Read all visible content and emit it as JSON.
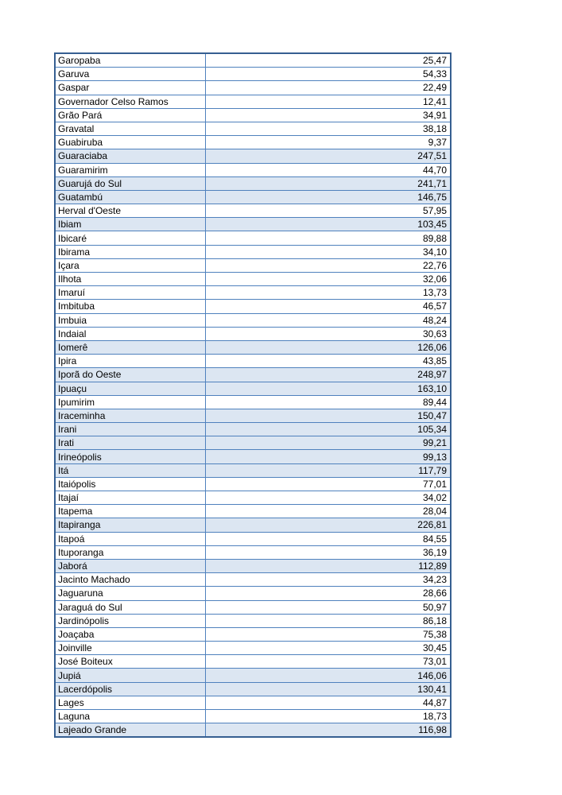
{
  "page": {
    "background_color": "#ffffff"
  },
  "table": {
    "outer_border_color": "#365f91",
    "grid_color": "#4f81bd",
    "highlight_color": "#dce6f2",
    "text_color": "#000000",
    "columns": [
      "municipality",
      "value"
    ],
    "rows": [
      {
        "name": "Garopaba",
        "value": "25,47",
        "highlighted": false
      },
      {
        "name": "Garuva",
        "value": "54,33",
        "highlighted": false
      },
      {
        "name": "Gaspar",
        "value": "22,49",
        "highlighted": false
      },
      {
        "name": "Governador Celso Ramos",
        "value": "12,41",
        "highlighted": false
      },
      {
        "name": "Grão Pará",
        "value": "34,91",
        "highlighted": false
      },
      {
        "name": "Gravatal",
        "value": "38,18",
        "highlighted": false
      },
      {
        "name": "Guabiruba",
        "value": "9,37",
        "highlighted": false
      },
      {
        "name": "Guaraciaba",
        "value": "247,51",
        "highlighted": true
      },
      {
        "name": "Guaramirim",
        "value": "44,70",
        "highlighted": false
      },
      {
        "name": "Guarujá do Sul",
        "value": "241,71",
        "highlighted": true
      },
      {
        "name": "Guatambú",
        "value": "146,75",
        "highlighted": true
      },
      {
        "name": "Herval d'Oeste",
        "value": "57,95",
        "highlighted": false
      },
      {
        "name": "Ibiam",
        "value": "103,45",
        "highlighted": true
      },
      {
        "name": "Ibicaré",
        "value": "89,88",
        "highlighted": false
      },
      {
        "name": "Ibirama",
        "value": "34,10",
        "highlighted": false
      },
      {
        "name": "Içara",
        "value": "22,76",
        "highlighted": false
      },
      {
        "name": "Ilhota",
        "value": "32,06",
        "highlighted": false
      },
      {
        "name": "Imaruí",
        "value": "13,73",
        "highlighted": false
      },
      {
        "name": "Imbituba",
        "value": "46,57",
        "highlighted": false
      },
      {
        "name": "Imbuia",
        "value": "48,24",
        "highlighted": false
      },
      {
        "name": "Indaial",
        "value": "30,63",
        "highlighted": false
      },
      {
        "name": "Iomerê",
        "value": "126,06",
        "highlighted": true
      },
      {
        "name": "Ipira",
        "value": "43,85",
        "highlighted": false
      },
      {
        "name": "Iporã do Oeste",
        "value": "248,97",
        "highlighted": true
      },
      {
        "name": "Ipuaçu",
        "value": "163,10",
        "highlighted": true
      },
      {
        "name": "Ipumirim",
        "value": "89,44",
        "highlighted": false
      },
      {
        "name": "Iraceminha",
        "value": "150,47",
        "highlighted": true
      },
      {
        "name": "Irani",
        "value": "105,34",
        "highlighted": true
      },
      {
        "name": "Irati",
        "value": "99,21",
        "highlighted": true
      },
      {
        "name": "Irineópolis",
        "value": "99,13",
        "highlighted": true
      },
      {
        "name": "Itá",
        "value": "117,79",
        "highlighted": true
      },
      {
        "name": "Itaiópolis",
        "value": "77,01",
        "highlighted": false
      },
      {
        "name": "Itajaí",
        "value": "34,02",
        "highlighted": false
      },
      {
        "name": "Itapema",
        "value": "28,04",
        "highlighted": false
      },
      {
        "name": "Itapiranga",
        "value": "226,81",
        "highlighted": true
      },
      {
        "name": "Itapoá",
        "value": "84,55",
        "highlighted": false
      },
      {
        "name": "Ituporanga",
        "value": "36,19",
        "highlighted": false
      },
      {
        "name": "Jaborá",
        "value": "112,89",
        "highlighted": true
      },
      {
        "name": "Jacinto Machado",
        "value": "34,23",
        "highlighted": false
      },
      {
        "name": "Jaguaruna",
        "value": "28,66",
        "highlighted": false
      },
      {
        "name": "Jaraguá do Sul",
        "value": "50,97",
        "highlighted": false
      },
      {
        "name": "Jardinópolis",
        "value": "86,18",
        "highlighted": false
      },
      {
        "name": "Joaçaba",
        "value": "75,38",
        "highlighted": false
      },
      {
        "name": "Joinville",
        "value": "30,45",
        "highlighted": false
      },
      {
        "name": "José Boiteux",
        "value": "73,01",
        "highlighted": false
      },
      {
        "name": "Jupiá",
        "value": "146,06",
        "highlighted": true
      },
      {
        "name": "Lacerdópolis",
        "value": "130,41",
        "highlighted": true
      },
      {
        "name": "Lages",
        "value": "44,87",
        "highlighted": false
      },
      {
        "name": "Laguna",
        "value": "18,73",
        "highlighted": false
      },
      {
        "name": "Lajeado Grande",
        "value": "116,98",
        "highlighted": true
      }
    ]
  }
}
